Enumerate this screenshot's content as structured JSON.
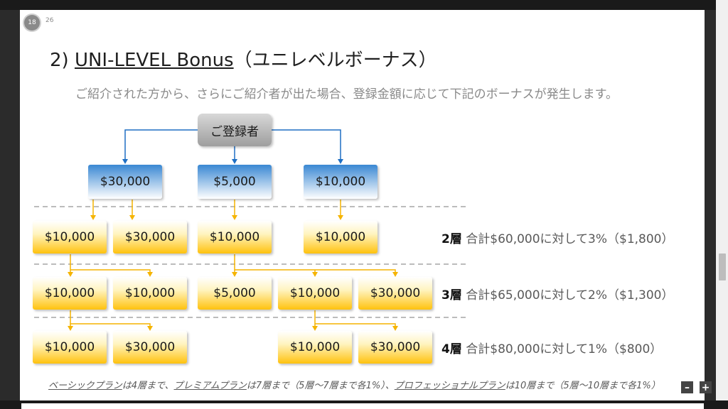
{
  "page": {
    "current": "18",
    "total": "26"
  },
  "title": {
    "prefix": "2) ",
    "main": "UNI-LEVEL Bonus",
    "suffix": "（ユニレベルボーナス）"
  },
  "subtitle": "ご紹介された方から、さらにご紹介者が出た場合、登録金額に応じて下記のボーナスが発生します。",
  "root": "ご登録者",
  "level1": [
    "$30,000",
    "$5,000",
    "$10,000"
  ],
  "level2": [
    "$10,000",
    "$30,000",
    "$10,000",
    "$10,000"
  ],
  "level3": [
    "$10,000",
    "$10,000",
    "$5,000",
    "$10,000",
    "$30,000"
  ],
  "level4": [
    "$10,000",
    "$30,000",
    "$10,000",
    "$30,000"
  ],
  "levels": [
    {
      "tier": "2層",
      "text": "合計$60,000に対して3%（$1,800）"
    },
    {
      "tier": "3層",
      "text": "合計$65,000に対して2%（$1,300）"
    },
    {
      "tier": "4層",
      "text": "合計$80,000に対して1%（$800）"
    }
  ],
  "footnote": {
    "p1": "ベーシックプラン",
    "p2": "は4層まで、",
    "p3": "プレミアムプラン",
    "p4": "は7層まで（5層～7層まで各1%）、",
    "p5": "プロフェッショナルプラン",
    "p6": "は10層まで（5層～10層まで各1%）"
  },
  "zoom": {
    "minus": "–",
    "plus": "+"
  },
  "colors": {
    "arrow_blue": "#1f6fc4",
    "arrow_yellow": "#f5b400",
    "dashed": "#a6a6a6"
  }
}
